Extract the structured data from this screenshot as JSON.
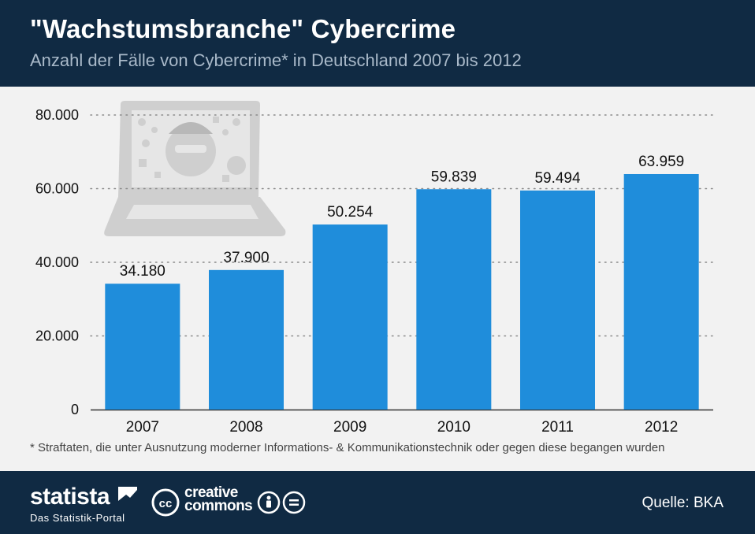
{
  "header": {
    "title": "\"Wachstumsbranche\" Cybercrime",
    "subtitle": "Anzahl der Fälle von Cybercrime* in Deutschland 2007 bis 2012"
  },
  "chart_data": {
    "type": "bar",
    "title": "\"Wachstumsbranche\" Cybercrime",
    "subtitle": "Anzahl der Fälle von Cybercrime* in Deutschland 2007 bis 2012",
    "categories": [
      "2007",
      "2008",
      "2009",
      "2010",
      "2011",
      "2012"
    ],
    "values": [
      34180,
      37900,
      50254,
      59839,
      59494,
      63959
    ],
    "value_labels": [
      "34.180",
      "37.900",
      "50.254",
      "59.839",
      "59.494",
      "63.959"
    ],
    "yticks": [
      0,
      20000,
      40000,
      60000,
      80000
    ],
    "ytick_labels": [
      "0",
      "20.000",
      "40.000",
      "60.000",
      "80.000"
    ],
    "ylim": [
      0,
      80000
    ],
    "xlabel": "",
    "ylabel": "",
    "grid": "dotted horizontal",
    "bar_color": "#1f8ddb"
  },
  "footnote": "* Straftaten, die unter Ausnutzung moderner Informations- & Kommunikationstechnik oder gegen diese begangen wurden",
  "footer": {
    "brand": "statista",
    "brand_sub": "Das Statistik-Portal",
    "cc_line1": "creative",
    "cc_line2": "commons",
    "source": "Quelle: BKA"
  },
  "colors": {
    "header_bg": "#102a43",
    "bar": "#1f8ddb",
    "background": "#f2f2f2",
    "illustration": "#cfcfcf"
  },
  "icons": [
    "laptop-hacker-icon",
    "statista-flag-icon",
    "creative-commons-icon",
    "cc-attribution-icon",
    "cc-noderivs-icon"
  ]
}
